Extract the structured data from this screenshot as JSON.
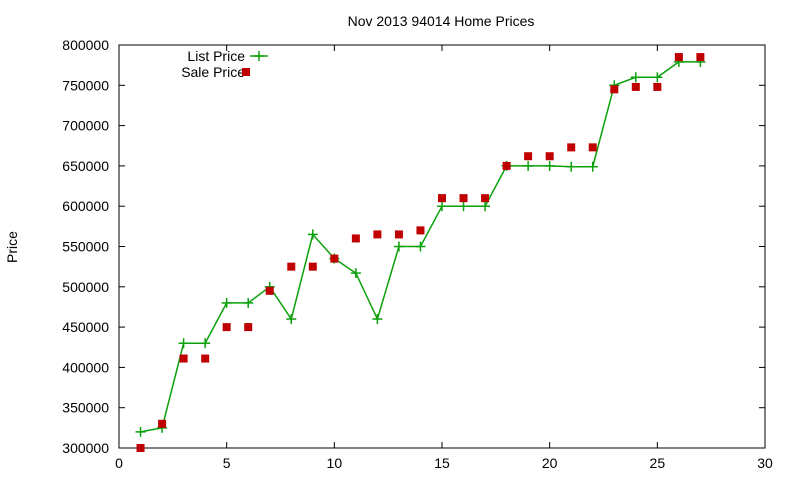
{
  "chart_data": {
    "type": "scatter",
    "title": "Nov 2013 94014 Home Prices",
    "xlabel": "",
    "ylabel": "Price",
    "xlim": [
      0,
      30
    ],
    "ylim": [
      300000,
      800000
    ],
    "x_ticks": [
      0,
      5,
      10,
      15,
      20,
      25,
      30
    ],
    "y_ticks": [
      300000,
      350000,
      400000,
      450000,
      500000,
      550000,
      600000,
      650000,
      700000,
      750000,
      800000
    ],
    "grid": false,
    "legend": "top-left",
    "series": [
      {
        "name": "List Price",
        "style": "line-with-plus-markers",
        "color": "#0aa00a",
        "x": [
          1,
          2,
          3,
          4,
          5,
          6,
          7,
          8,
          9,
          10,
          11,
          12,
          13,
          14,
          15,
          16,
          17,
          18,
          19,
          20,
          21,
          22,
          23,
          24,
          25,
          26,
          27
        ],
        "values": [
          320000,
          325000,
          430000,
          430000,
          480000,
          480000,
          500000,
          460000,
          565000,
          535000,
          517000,
          460000,
          550000,
          550000,
          600000,
          600000,
          600000,
          650000,
          650000,
          650000,
          649000,
          649000,
          750000,
          760000,
          760000,
          779000,
          779000
        ]
      },
      {
        "name": "Sale Price",
        "style": "square-markers",
        "color": "#c00000",
        "x": [
          1,
          2,
          3,
          4,
          5,
          6,
          7,
          8,
          9,
          10,
          11,
          12,
          13,
          14,
          15,
          16,
          17,
          18,
          19,
          20,
          21,
          22,
          23,
          24,
          25,
          26,
          27
        ],
        "values": [
          300000,
          330000,
          411000,
          411000,
          450000,
          450000,
          495000,
          525000,
          525000,
          535000,
          560000,
          565000,
          565000,
          570000,
          610000,
          610000,
          610000,
          650000,
          662000,
          662000,
          673000,
          673000,
          745000,
          748000,
          748000,
          785000,
          785000
        ]
      }
    ]
  }
}
